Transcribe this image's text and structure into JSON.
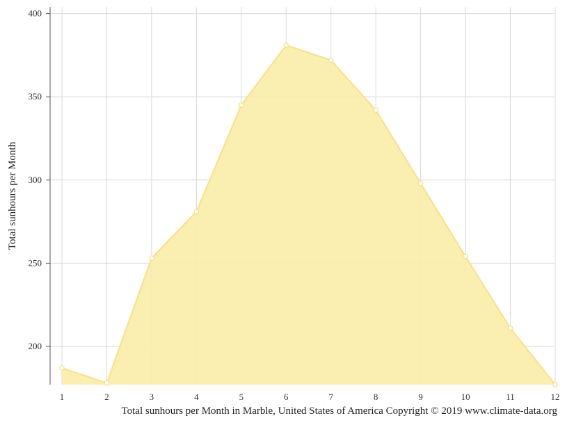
{
  "chart_data": {
    "type": "area",
    "x": [
      1,
      2,
      3,
      4,
      5,
      6,
      7,
      8,
      9,
      10,
      11,
      12
    ],
    "series": [
      {
        "values": [
          187,
          178,
          253,
          281,
          345,
          381,
          372,
          342,
          298,
          254,
          211,
          177
        ]
      }
    ],
    "xlabel": "",
    "ylabel": "Total sunhours per Month",
    "ylim": [
      177,
      404
    ],
    "y_ticks": [
      200,
      250,
      300,
      350,
      400
    ],
    "x_ticks": [
      "1",
      "2",
      "3",
      "4",
      "5",
      "6",
      "7",
      "8",
      "9",
      "10",
      "11",
      "12"
    ],
    "grid": true,
    "legend": "none",
    "colors": {
      "fill": "#f9eca9",
      "line": "#f6e089",
      "grid": "#d9d9d9",
      "axis": "#555555",
      "marker_fill": "#ffffff"
    }
  },
  "caption": "Total sunhours per Month in Marble, United States of America Copyright © 2019 www.climate-data.org"
}
